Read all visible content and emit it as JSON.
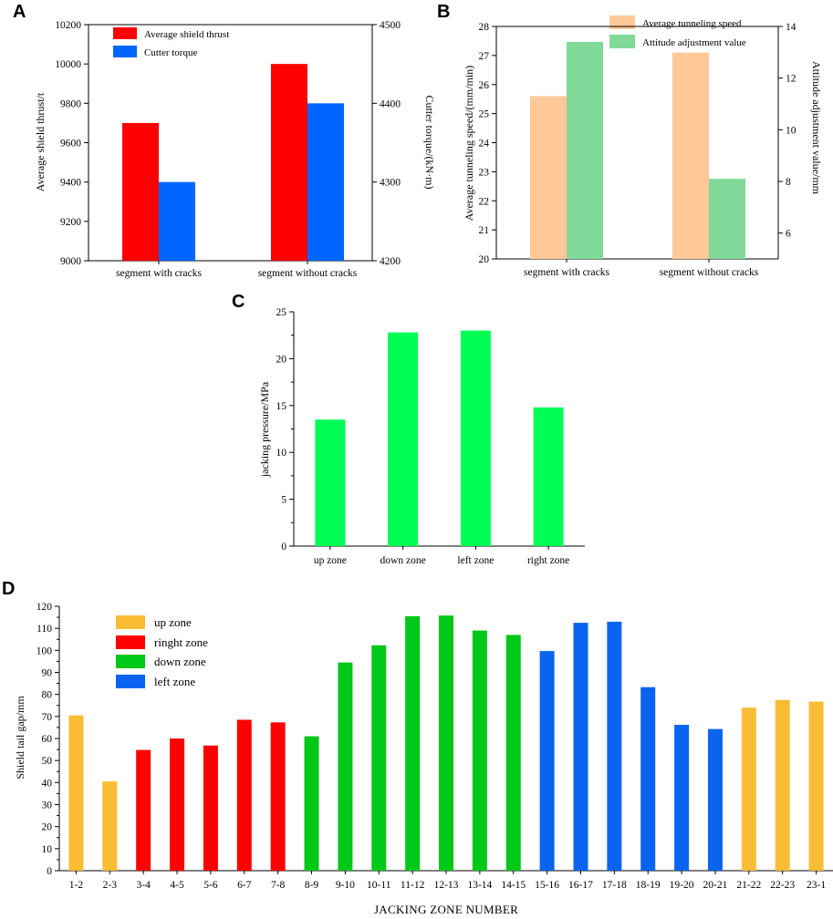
{
  "panel_labels": [
    "A",
    "B",
    "C",
    "D"
  ],
  "chart_data": [
    {
      "panel": "A",
      "type": "bar",
      "categories": [
        "segment with cracks",
        "segment without cracks"
      ],
      "series": [
        {
          "name": "Average shield thrust",
          "axis": "left",
          "color": "#ff0000",
          "values": [
            9700,
            10000
          ]
        },
        {
          "name": "Cutter torque",
          "axis": "right",
          "color": "#0066ff",
          "values": [
            4300,
            4400
          ]
        }
      ],
      "ylabel": "Average shield thrust/t",
      "ylabel_right": "Cutter torque/(kN·m)",
      "ylim": [
        9000,
        10200
      ],
      "yticks": [
        9000,
        9200,
        9400,
        9600,
        9800,
        10000,
        10200
      ],
      "ylim_right": [
        4200,
        4500
      ],
      "yticks_right": [
        4200,
        4300,
        4400,
        4500
      ],
      "legend_position": "top-left"
    },
    {
      "panel": "B",
      "type": "bar",
      "categories": [
        "segment with cracks",
        "segment without cracks"
      ],
      "series": [
        {
          "name": "Average tunneling speed",
          "axis": "left",
          "color": "#ffc896",
          "values": [
            25.6,
            27.1
          ]
        },
        {
          "name": "Attitude adjustment value",
          "axis": "right",
          "color": "#80d998",
          "values": [
            13.4,
            8.1
          ]
        }
      ],
      "ylabel": "Average tunneling speed/(mm/min)",
      "ylabel_right": "Attitude adjustment value/mm",
      "ylim": [
        20,
        28
      ],
      "yticks": [
        20,
        21,
        22,
        23,
        24,
        25,
        26,
        27,
        28
      ],
      "ylim_right": [
        5,
        14
      ],
      "yticks_right": [
        6,
        8,
        10,
        12,
        14
      ],
      "legend_position": "top-center"
    },
    {
      "panel": "C",
      "type": "bar",
      "categories": [
        "up zone",
        "down zone",
        "left zone",
        "right zone"
      ],
      "values": [
        13.5,
        22.8,
        23.0,
        14.8
      ],
      "color": "#00ff55",
      "ylabel": "jacking pressure/MPa",
      "ylim": [
        0,
        25
      ],
      "yticks": [
        0,
        5,
        10,
        15,
        20,
        25
      ]
    },
    {
      "panel": "D",
      "type": "bar",
      "categories": [
        "1-2",
        "2-3",
        "3-4",
        "4-5",
        "5-6",
        "6-7",
        "7-8",
        "8-9",
        "9-10",
        "10-11",
        "11-12",
        "12-13",
        "13-14",
        "14-15",
        "15-16",
        "16-17",
        "17-18",
        "18-19",
        "19-20",
        "20-21",
        "21-22",
        "22-23",
        "23-1"
      ],
      "values": [
        70.5,
        40.5,
        54.8,
        60.0,
        56.8,
        68.5,
        67.3,
        61.0,
        94.5,
        102.3,
        115.5,
        115.8,
        109.0,
        107.0,
        99.7,
        112.5,
        113.0,
        83.3,
        66.2,
        64.3,
        74.0,
        77.5,
        76.7
      ],
      "zones": [
        "up",
        "up",
        "ringht",
        "ringht",
        "ringht",
        "ringht",
        "ringht",
        "down",
        "down",
        "down",
        "down",
        "down",
        "down",
        "down",
        "left",
        "left",
        "left",
        "left",
        "left",
        "left",
        "up",
        "up",
        "up"
      ],
      "zone_legend": [
        {
          "key": "up",
          "label": "up zone",
          "color": "#fbbc35"
        },
        {
          "key": "ringht",
          "label": "ringht zone",
          "color": "#ff0000"
        },
        {
          "key": "down",
          "label": "down zone",
          "color": "#00c818"
        },
        {
          "key": "left",
          "label": "left zone",
          "color": "#0a64f0"
        }
      ],
      "xlabel": "JACKING ZONE NUMBER",
      "ylabel": "Shield tail gap/mm",
      "ylim": [
        0,
        120
      ],
      "yticks": [
        0,
        10,
        20,
        30,
        40,
        50,
        60,
        70,
        80,
        90,
        100,
        110,
        120
      ],
      "legend_position": "top-left"
    }
  ]
}
